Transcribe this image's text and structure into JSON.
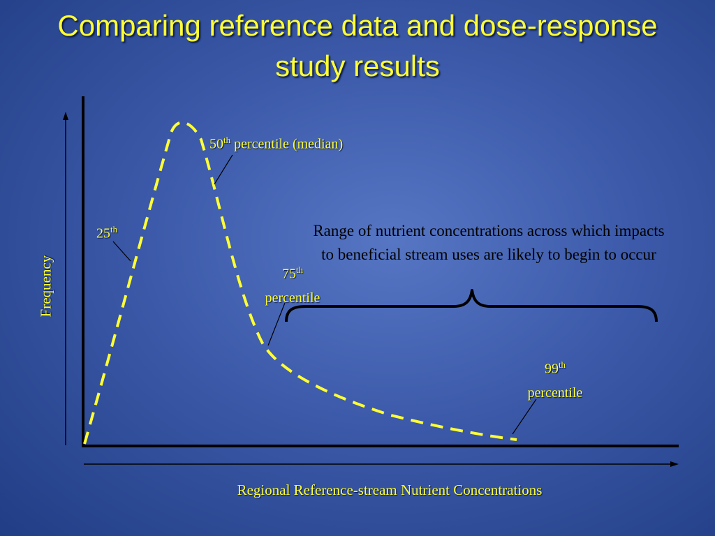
{
  "title": "Comparing reference data and dose-response study results",
  "labels": {
    "p25": {
      "num": "25",
      "sup": "th",
      "text": ""
    },
    "p50": {
      "num": "50",
      "sup": "th",
      "text": "percentile (median)"
    },
    "p75": {
      "num": "75",
      "sup": "th",
      "text": "percentile"
    },
    "p99": {
      "num": "99",
      "sup": "th",
      "text": "percentile"
    }
  },
  "range_text": "Range of nutrient concentrations across which impacts to beneficial stream uses are likely to begin to occur",
  "x_axis_label": "Regional Reference-stream Nutrient Concentrations",
  "y_axis_label": "Frequency",
  "colors": {
    "accent": "#ffff33",
    "text_dark": "#000000",
    "background": "#3b59a8"
  }
}
